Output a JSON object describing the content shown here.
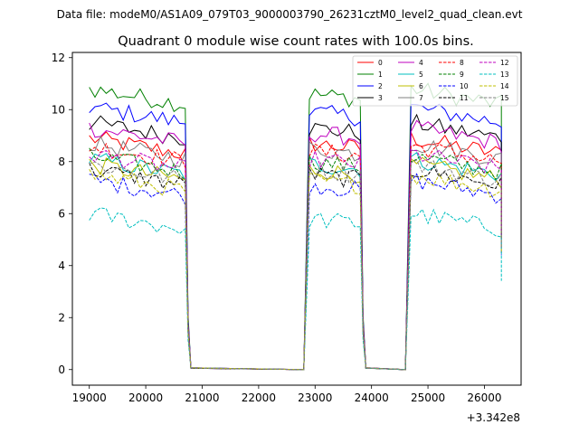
{
  "chart_data": {
    "type": "line",
    "suptitle": "Data file: modeM0/AS1A09_079T03_9000003790_26231cztM0_level2_quad_clean.evt",
    "title": "Quadrant 0 module wise count rates with 100.0s bins.",
    "xlabel": "",
    "ylabel": "",
    "x_offset_label": "+3.342e8",
    "xlim": [
      18700,
      26650
    ],
    "ylim": [
      -0.6,
      12.2
    ],
    "xticks": [
      19000,
      20000,
      21000,
      22000,
      23000,
      24000,
      25000,
      26000
    ],
    "yticks": [
      0,
      2,
      4,
      6,
      8,
      10,
      12
    ],
    "x_unit_note": "time offset from 3.342e8 s",
    "segments": [
      {
        "start": 19000,
        "end": 20700
      },
      {
        "start": 22900,
        "end": 23800
      },
      {
        "start": 24700,
        "end": 26300
      }
    ],
    "gaps": [
      {
        "from": 20700,
        "to": 22900
      },
      {
        "from": 23800,
        "to": 24700
      }
    ],
    "legend": {
      "position": "top-right",
      "ncol": 4
    },
    "series": [
      {
        "name": "0",
        "color": "#ff0000",
        "dash": "solid",
        "level": 8.6
      },
      {
        "name": "1",
        "color": "#008000",
        "dash": "solid",
        "level": 10.5
      },
      {
        "name": "2",
        "color": "#0000ff",
        "dash": "solid",
        "level": 9.8
      },
      {
        "name": "3",
        "color": "#000000",
        "dash": "solid",
        "level": 9.2
      },
      {
        "name": "4",
        "color": "#bf00bf",
        "dash": "solid",
        "level": 9.0
      },
      {
        "name": "5",
        "color": "#00bfbf",
        "dash": "solid",
        "level": 7.8
      },
      {
        "name": "6",
        "color": "#bfbf00",
        "dash": "solid",
        "level": 7.6
      },
      {
        "name": "7",
        "color": "#808080",
        "dash": "solid",
        "level": 8.4
      },
      {
        "name": "8",
        "color": "#ff0000",
        "dash": "dashed",
        "level": 8.3
      },
      {
        "name": "9",
        "color": "#008000",
        "dash": "dashed",
        "level": 7.9
      },
      {
        "name": "10",
        "color": "#0000ff",
        "dash": "dashed",
        "level": 7.0
      },
      {
        "name": "11",
        "color": "#000000",
        "dash": "dashed",
        "level": 7.4
      },
      {
        "name": "12",
        "color": "#bf00bf",
        "dash": "dashed",
        "level": 8.0
      },
      {
        "name": "13",
        "color": "#00bfbf",
        "dash": "dashed",
        "level": 5.7
      },
      {
        "name": "14",
        "color": "#bfbf00",
        "dash": "dashed",
        "level": 7.2
      },
      {
        "name": "15",
        "color": "#808080",
        "dash": "dashed",
        "level": 7.6
      }
    ]
  }
}
